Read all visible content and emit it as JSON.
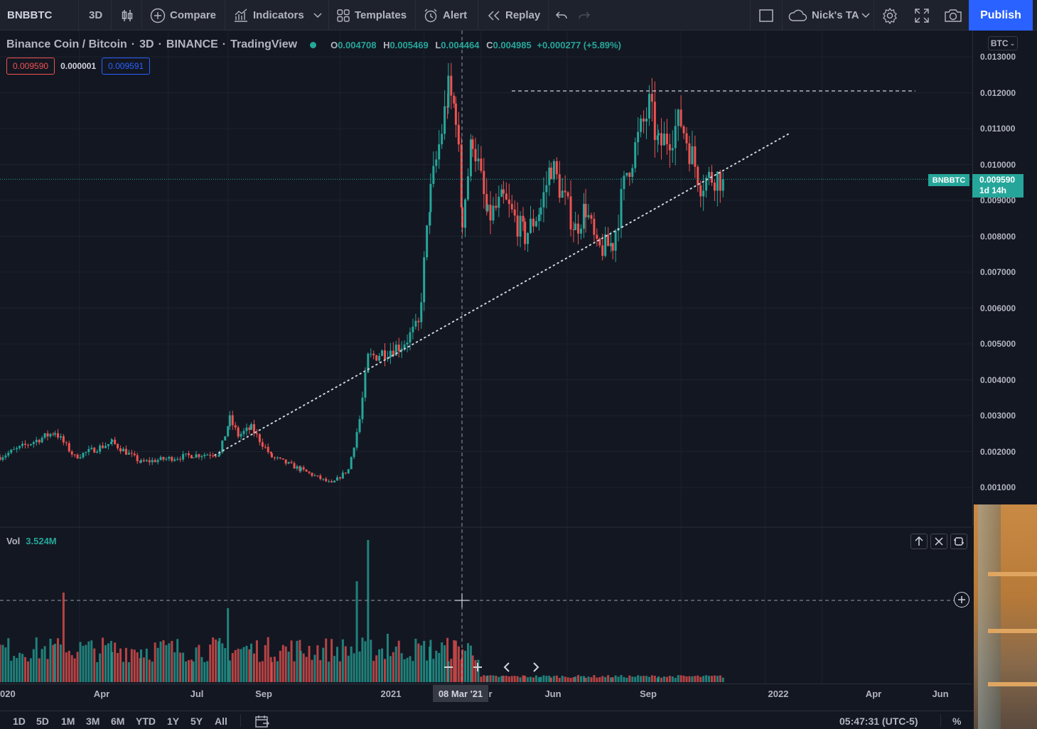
{
  "toolbar": {
    "symbol": "BNBBTC",
    "interval": "3D",
    "compare": "Compare",
    "indicators": "Indicators",
    "templates": "Templates",
    "alert": "Alert",
    "replay": "Replay",
    "layout_name": "Nick's TA",
    "publish": "Publish"
  },
  "legend": {
    "title": "Binance Coin / Bitcoin",
    "interval": "3D",
    "exchange": "BINANCE",
    "source": "TradingView",
    "o_label": "O",
    "o": "0.004708",
    "h_label": "H",
    "h": "0.005469",
    "l_label": "L",
    "l": "0.004464",
    "c_label": "C",
    "c": "0.004985",
    "change": "+0.000277 (+5.89%)",
    "bid": "0.009590",
    "spread": "0.000001",
    "ask": "0.009591"
  },
  "axis": {
    "currency": "BTC",
    "ticks": [
      "0.013000",
      "0.012000",
      "0.011000",
      "0.010000",
      "0.009000",
      "0.008000",
      "0.007000",
      "0.006000",
      "0.005000",
      "0.004000",
      "0.003000",
      "0.002000",
      "0.001000"
    ],
    "symbol_tag": "BNBBTC",
    "last_price": "0.009590",
    "countdown": "1d 14h"
  },
  "volume": {
    "label": "Vol",
    "value": "3.524M"
  },
  "time_axis": {
    "labels": [
      "020",
      "Apr",
      "Jul",
      "Sep",
      "2021",
      "r",
      "Jun",
      "Sep",
      "2022",
      "Apr",
      "Jun"
    ],
    "cursor": "08 Mar '21"
  },
  "bottom": {
    "ranges": [
      "1D",
      "5D",
      "1M",
      "3M",
      "6M",
      "YTD",
      "1Y",
      "5Y",
      "All"
    ],
    "clock": "05:47:31 (UTC-5)",
    "percent": "%"
  },
  "colors": {
    "up": "#26a69a",
    "down": "#ef5350",
    "accent": "#2962ff",
    "background": "#131722"
  },
  "chart_data": {
    "type": "candlestick",
    "title": "Binance Coin / Bitcoin",
    "ylim": [
      0.0005,
      0.0135
    ],
    "scale": "linear",
    "grid": true,
    "anchors": [
      {
        "date": "2020-01-03",
        "close": 0.00185
      },
      {
        "date": "2020-03-02",
        "close": 0.00255
      },
      {
        "date": "2020-03-23",
        "close": 0.00185
      },
      {
        "date": "2020-05-02",
        "close": 0.00225
      },
      {
        "date": "2020-06-02",
        "close": 0.0017
      },
      {
        "date": "2020-07-28",
        "close": 0.0019
      },
      {
        "date": "2020-08-25",
        "close": 0.00195
      },
      {
        "date": "2020-09-05",
        "close": 0.0029
      },
      {
        "date": "2020-09-14",
        "close": 0.00245
      },
      {
        "date": "2020-09-28",
        "close": 0.00265
      },
      {
        "date": "2020-10-20",
        "close": 0.00185
      },
      {
        "date": "2020-11-20",
        "close": 0.0015
      },
      {
        "date": "2020-12-23",
        "close": 0.0011
      },
      {
        "date": "2021-01-10",
        "close": 0.0015
      },
      {
        "date": "2021-01-22",
        "close": 0.0029
      },
      {
        "date": "2021-01-31",
        "close": 0.0046
      },
      {
        "date": "2021-03-08",
        "close": 0.00498
      },
      {
        "date": "2021-03-26",
        "close": 0.0055
      },
      {
        "date": "2021-04-08",
        "close": 0.0092
      },
      {
        "date": "2021-04-27",
        "close": 0.012
      },
      {
        "date": "2021-05-05",
        "close": 0.0115
      },
      {
        "date": "2021-05-12",
        "close": 0.0085
      },
      {
        "date": "2021-05-23",
        "close": 0.0108
      },
      {
        "date": "2021-06-08",
        "close": 0.0085
      },
      {
        "date": "2021-06-25",
        "close": 0.009
      },
      {
        "date": "2021-07-18",
        "close": 0.008
      },
      {
        "date": "2021-08-04",
        "close": 0.0088
      },
      {
        "date": "2021-08-15",
        "close": 0.01
      },
      {
        "date": "2021-09-10",
        "close": 0.0082
      },
      {
        "date": "2021-09-21",
        "close": 0.0088
      },
      {
        "date": "2021-10-03",
        "close": 0.0076
      },
      {
        "date": "2021-10-20",
        "close": 0.0078
      },
      {
        "date": "2021-11-04",
        "close": 0.0098
      },
      {
        "date": "2021-11-28",
        "close": 0.0116
      },
      {
        "date": "2021-12-08",
        "close": 0.0105
      },
      {
        "date": "2022-01-01",
        "close": 0.0112
      },
      {
        "date": "2022-01-22",
        "close": 0.0095
      },
      {
        "date": "2022-02-06",
        "close": 0.0097
      },
      {
        "date": "2022-02-15",
        "close": 0.00959
      }
    ],
    "resistance_level": 0.01205,
    "trendline": [
      {
        "date": "2020-08-20",
        "price": 0.0019
      },
      {
        "date": "2022-04-26",
        "price": 0.01085
      }
    ],
    "volume_peaks": [
      {
        "date": "2020-03-12",
        "volume": 0.63
      },
      {
        "date": "2020-09-03",
        "volume": 0.52
      },
      {
        "date": "2021-01-19",
        "volume": 0.71
      },
      {
        "date": "2021-01-30",
        "volume": 1.0
      },
      {
        "date": "2021-02-21",
        "volume": 0.34
      }
    ]
  }
}
